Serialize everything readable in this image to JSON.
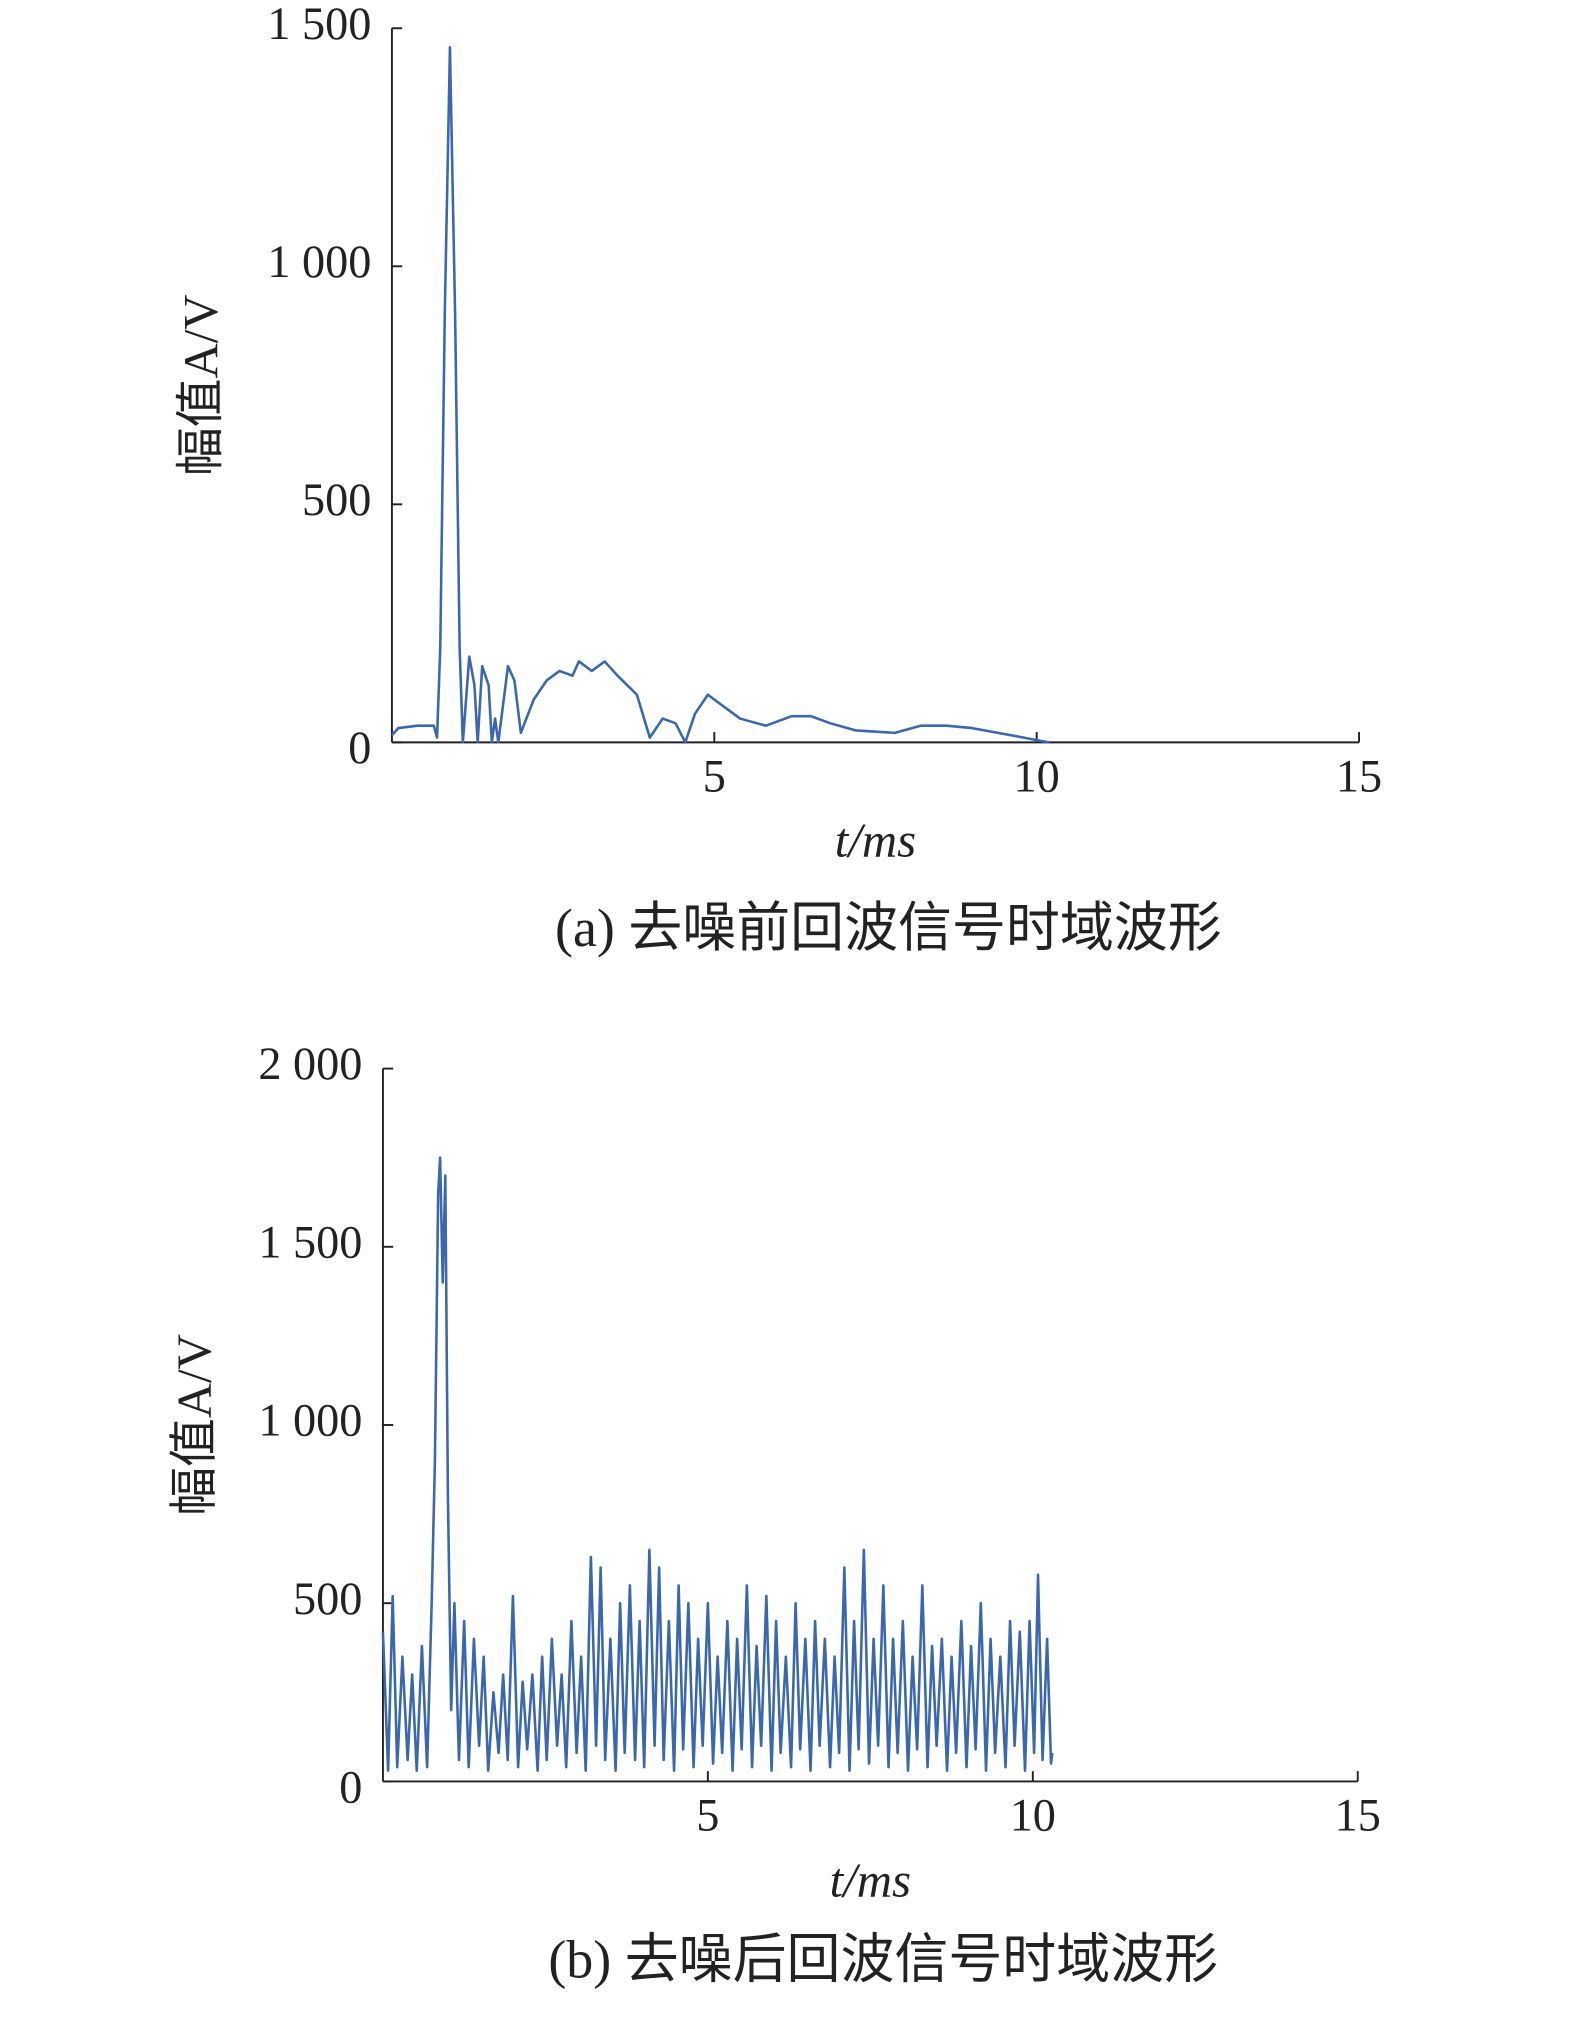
{
  "chart_data": [
    {
      "type": "line",
      "caption": "(a) 去噪前回波信号时域波形",
      "xlabel": "t/ms",
      "ylabel": "幅值A/V",
      "xlim": [
        0,
        15
      ],
      "xticks": [
        5,
        10,
        15
      ],
      "ylim": [
        0,
        1500
      ],
      "yticks": [
        0,
        500,
        {
          "value": 1000,
          "label": "1 000"
        },
        {
          "value": 1500,
          "label": "1 500"
        }
      ],
      "x": [
        0,
        0.1,
        0.4,
        0.65,
        0.7,
        0.75,
        0.82,
        0.9,
        0.98,
        1.05,
        1.1,
        1.2,
        1.28,
        1.33,
        1.4,
        1.5,
        1.55,
        1.6,
        1.65,
        1.8,
        1.9,
        2.0,
        2.2,
        2.4,
        2.6,
        2.8,
        2.9,
        3.1,
        3.3,
        3.5,
        3.8,
        4.0,
        4.2,
        4.4,
        4.55,
        4.7,
        4.9,
        5.1,
        5.4,
        5.8,
        6.2,
        6.5,
        6.8,
        7.2,
        7.8,
        8.2,
        8.6,
        9.0,
        9.4,
        9.8,
        10.1,
        10.2
      ],
      "series": [
        {
          "color": "#3a67b0",
          "values": [
            15,
            30,
            35,
            35,
            10,
            200,
            900,
            1460,
            900,
            200,
            0,
            180,
            120,
            0,
            160,
            120,
            0,
            50,
            0,
            160,
            130,
            20,
            90,
            130,
            150,
            140,
            170,
            150,
            170,
            140,
            100,
            10,
            50,
            40,
            0,
            60,
            100,
            80,
            50,
            35,
            55,
            55,
            40,
            25,
            20,
            35,
            35,
            30,
            20,
            10,
            2,
            0
          ]
        }
      ]
    },
    {
      "type": "line",
      "caption": "(b) 去噪后回波信号时域波形",
      "xlabel": "t/ms",
      "ylabel": "幅值A/V",
      "xlim": [
        0,
        15
      ],
      "xticks": [
        5,
        10,
        15
      ],
      "ylim": [
        0,
        2000
      ],
      "yticks": [
        0,
        500,
        {
          "value": 1000,
          "label": "1 000"
        },
        {
          "value": 1500,
          "label": "1 500"
        },
        {
          "value": 2000,
          "label": "2 000"
        }
      ],
      "x": [
        0,
        0.08,
        0.15,
        0.22,
        0.3,
        0.38,
        0.45,
        0.52,
        0.6,
        0.68,
        0.75,
        0.8,
        0.85,
        0.88,
        0.92,
        0.96,
        1.0,
        1.05,
        1.1,
        1.17,
        1.25,
        1.32,
        1.4,
        1.48,
        1.55,
        1.62,
        1.7,
        1.78,
        1.85,
        1.92,
        2.0,
        2.08,
        2.15,
        2.22,
        2.3,
        2.38,
        2.45,
        2.52,
        2.6,
        2.68,
        2.75,
        2.82,
        2.9,
        2.98,
        3.05,
        3.12,
        3.2,
        3.28,
        3.35,
        3.42,
        3.5,
        3.58,
        3.65,
        3.72,
        3.8,
        3.88,
        3.95,
        4.02,
        4.1,
        4.18,
        4.25,
        4.32,
        4.4,
        4.48,
        4.55,
        4.62,
        4.7,
        4.78,
        4.85,
        4.92,
        5.0,
        5.08,
        5.15,
        5.22,
        5.3,
        5.38,
        5.45,
        5.52,
        5.6,
        5.68,
        5.75,
        5.82,
        5.9,
        5.98,
        6.05,
        6.12,
        6.2,
        6.28,
        6.35,
        6.42,
        6.5,
        6.58,
        6.65,
        6.72,
        6.8,
        6.88,
        6.95,
        7.02,
        7.1,
        7.18,
        7.25,
        7.32,
        7.4,
        7.48,
        7.55,
        7.62,
        7.7,
        7.78,
        7.85,
        7.92,
        8.0,
        8.08,
        8.15,
        8.22,
        8.3,
        8.38,
        8.45,
        8.52,
        8.6,
        8.68,
        8.75,
        8.82,
        8.9,
        8.98,
        9.05,
        9.12,
        9.2,
        9.28,
        9.35,
        9.42,
        9.5,
        9.58,
        9.65,
        9.72,
        9.8,
        9.88,
        9.95,
        10.02,
        10.08,
        10.15,
        10.22,
        10.28,
        10.3
      ],
      "series": [
        {
          "color": "#3a67b0",
          "values": [
            420,
            30,
            520,
            40,
            350,
            60,
            300,
            30,
            380,
            40,
            500,
            900,
            1650,
            1750,
            1400,
            1700,
            800,
            200,
            500,
            60,
            450,
            40,
            400,
            100,
            350,
            30,
            250,
            80,
            300,
            60,
            520,
            40,
            280,
            90,
            300,
            30,
            350,
            60,
            400,
            100,
            300,
            40,
            450,
            80,
            350,
            30,
            630,
            100,
            600,
            60,
            400,
            30,
            500,
            80,
            550,
            60,
            450,
            40,
            650,
            100,
            600,
            60,
            450,
            30,
            550,
            90,
            500,
            40,
            400,
            100,
            500,
            50,
            350,
            80,
            450,
            30,
            400,
            90,
            550,
            40,
            380,
            100,
            520,
            30,
            450,
            80,
            350,
            40,
            500,
            90,
            400,
            30,
            450,
            100,
            400,
            40,
            350,
            80,
            600,
            30,
            450,
            90,
            650,
            50,
            400,
            100,
            550,
            40,
            400,
            80,
            450,
            30,
            350,
            90,
            550,
            40,
            380,
            100,
            400,
            30,
            350,
            80,
            450,
            40,
            380,
            90,
            500,
            30,
            400,
            80,
            350,
            40,
            450,
            100,
            420,
            30,
            450,
            80,
            580,
            60,
            400,
            50,
            80
          ]
        }
      ]
    }
  ]
}
